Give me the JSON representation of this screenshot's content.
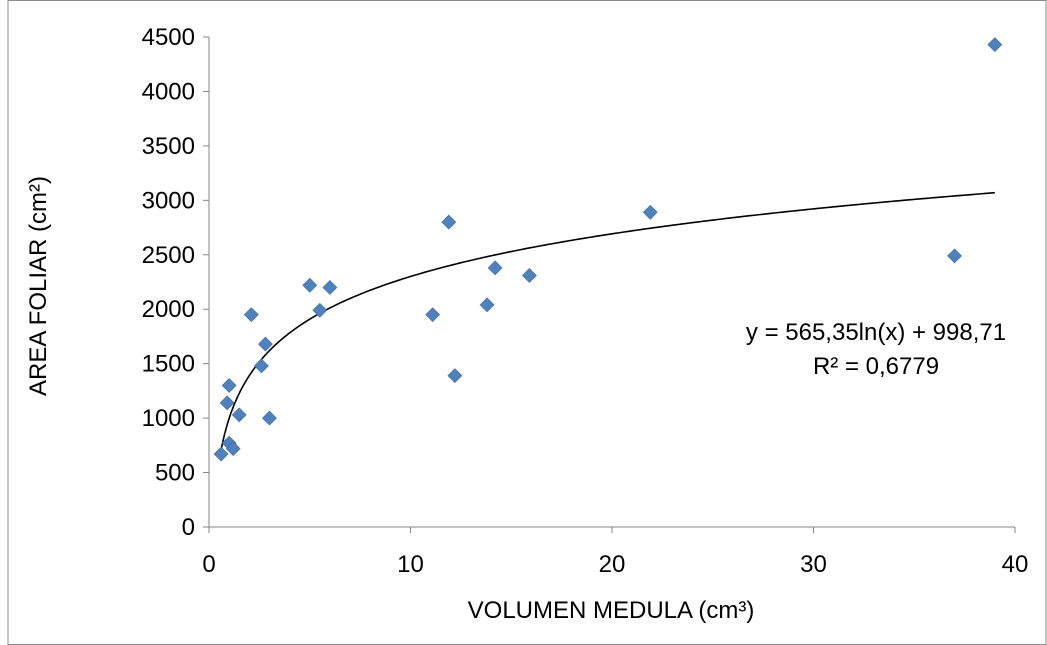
{
  "chart_data": {
    "type": "scatter",
    "title": "",
    "xlabel": "VOLUMEN MEDULA (cm³)",
    "ylabel": "AREA FOLIAR (cm²)",
    "xlim": [
      0,
      40
    ],
    "ylim": [
      0,
      4500
    ],
    "x_ticks": [
      "0",
      "10",
      "20",
      "30",
      "40"
    ],
    "y_ticks": [
      "0",
      "500",
      "1000",
      "1500",
      "2000",
      "2500",
      "3000",
      "3500",
      "4000",
      "4500"
    ],
    "grid": false,
    "legend": "none",
    "marker": "diamond",
    "marker_color": "#4f81bd",
    "trendline_color": "#000000",
    "points": [
      {
        "x": 0.6,
        "y": 670
      },
      {
        "x": 0.9,
        "y": 1140
      },
      {
        "x": 1.0,
        "y": 1300
      },
      {
        "x": 1.0,
        "y": 770
      },
      {
        "x": 1.2,
        "y": 720
      },
      {
        "x": 1.5,
        "y": 1030
      },
      {
        "x": 2.1,
        "y": 1950
      },
      {
        "x": 2.6,
        "y": 1480
      },
      {
        "x": 2.8,
        "y": 1680
      },
      {
        "x": 3.0,
        "y": 1000
      },
      {
        "x": 5.0,
        "y": 2220
      },
      {
        "x": 5.5,
        "y": 1990
      },
      {
        "x": 6.0,
        "y": 2200
      },
      {
        "x": 11.1,
        "y": 1950
      },
      {
        "x": 11.9,
        "y": 2800
      },
      {
        "x": 12.2,
        "y": 1390
      },
      {
        "x": 13.8,
        "y": 2040
      },
      {
        "x": 14.2,
        "y": 2380
      },
      {
        "x": 15.9,
        "y": 2310
      },
      {
        "x": 21.9,
        "y": 2890
      },
      {
        "x": 37.0,
        "y": 2490
      },
      {
        "x": 39.0,
        "y": 4430
      }
    ],
    "trendline": {
      "type": "logarithmic",
      "a": 565.35,
      "b": 998.71,
      "x_range": [
        0.6,
        39.0
      ],
      "equation": "y = 565,35ln(x) + 998,71",
      "r_squared": "R² = 0,6779"
    }
  }
}
